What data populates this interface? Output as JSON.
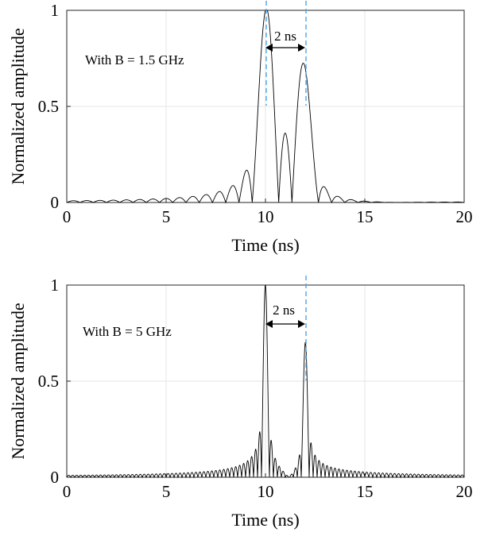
{
  "chart_data": [
    {
      "type": "line",
      "annotation": "With B = 1.5 GHz",
      "bandwidth_ghz": 1.5,
      "xlabel": "Time (ns)",
      "ylabel": "Normalized amplitude",
      "xlim": [
        0,
        20
      ],
      "ylim": [
        0,
        1
      ],
      "xticks": [
        "0",
        "5",
        "10",
        "15",
        "20"
      ],
      "yticks": [
        "0",
        "0.5",
        "1"
      ],
      "grid": true,
      "series": [
        {
          "peaks": [
            {
              "t": 10,
              "amplitude": 1.0
            },
            {
              "t": 12,
              "amplitude": 0.7
            }
          ]
        }
      ],
      "markers_at_ns": [
        10,
        12
      ],
      "separation_label": "2 ns"
    },
    {
      "type": "line",
      "annotation": "With B = 5 GHz",
      "bandwidth_ghz": 5,
      "xlabel": "Time (ns)",
      "ylabel": "Normalized amplitude",
      "xlim": [
        0,
        20
      ],
      "ylim": [
        0,
        1
      ],
      "xticks": [
        "0",
        "5",
        "10",
        "15",
        "20"
      ],
      "yticks": [
        "0",
        "0.5",
        "1"
      ],
      "grid": true,
      "series": [
        {
          "peaks": [
            {
              "t": 10,
              "amplitude": 1.0
            },
            {
              "t": 12,
              "amplitude": 0.7
            }
          ]
        }
      ],
      "markers_at_ns": [
        12
      ],
      "separation_label": "2 ns"
    }
  ],
  "colors": {
    "signal": "#000000",
    "marker": "#4da6e8",
    "grid": "#e6e6e6"
  }
}
